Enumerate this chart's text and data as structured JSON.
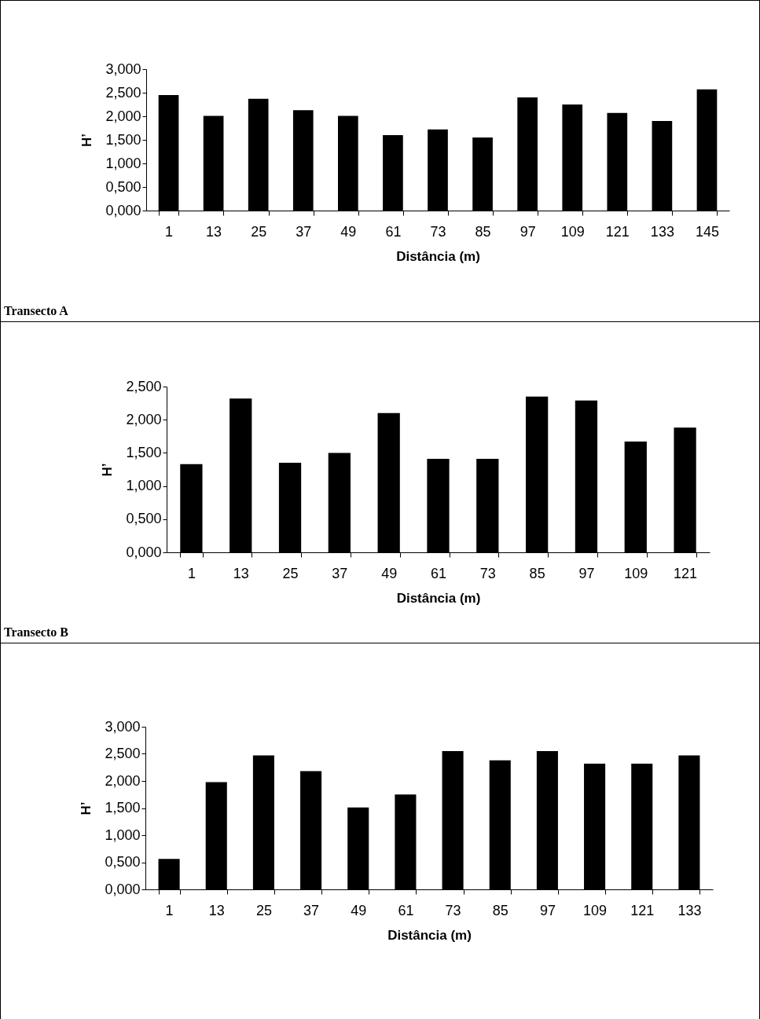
{
  "chart_data": [
    {
      "type": "bar",
      "xlabel": "Distância (m)",
      "ylabel": "H’",
      "categories": [
        "1",
        "13",
        "25",
        "37",
        "49",
        "61",
        "73",
        "85",
        "97",
        "109",
        "121",
        "133",
        "145"
      ],
      "values": [
        2.45,
        2.01,
        2.37,
        2.13,
        2.01,
        1.6,
        1.72,
        1.55,
        2.4,
        2.25,
        2.07,
        1.9,
        2.57
      ],
      "color": "#000000",
      "ylim": [
        0,
        3
      ],
      "yticks": [
        {
          "value": 0,
          "label": "0,000"
        },
        {
          "value": 0.5,
          "label": "0,500"
        },
        {
          "value": 1,
          "label": "1,000"
        },
        {
          "value": 1.5,
          "label": "1,500"
        },
        {
          "value": 2,
          "label": "2,000"
        },
        {
          "value": 2.5,
          "label": "2,500"
        },
        {
          "value": 3,
          "label": "3,000"
        }
      ],
      "grid": false,
      "annotations": [
        "Transecto A"
      ]
    },
    {
      "type": "bar",
      "xlabel": "Distância (m)",
      "ylabel": "H’",
      "categories": [
        "1",
        "13",
        "25",
        "37",
        "49",
        "61",
        "73",
        "85",
        "97",
        "109",
        "121"
      ],
      "values": [
        1.33,
        2.32,
        1.35,
        1.5,
        2.1,
        1.41,
        1.41,
        2.35,
        2.29,
        1.67,
        1.88
      ],
      "color": "#000000",
      "ylim": [
        0,
        2.5
      ],
      "yticks": [
        {
          "value": 0,
          "label": "0,000"
        },
        {
          "value": 0.5,
          "label": "0,500"
        },
        {
          "value": 1,
          "label": "1,000"
        },
        {
          "value": 1.5,
          "label": "1,500"
        },
        {
          "value": 2,
          "label": "2,000"
        },
        {
          "value": 2.5,
          "label": "2,500"
        }
      ],
      "grid": false,
      "annotations": [
        "Transecto B"
      ]
    },
    {
      "type": "bar",
      "xlabel": "Distância (m)",
      "ylabel": "H’",
      "categories": [
        "1",
        "13",
        "25",
        "37",
        "49",
        "61",
        "73",
        "85",
        "97",
        "109",
        "121",
        "133"
      ],
      "values": [
        0.56,
        1.98,
        2.47,
        2.18,
        1.51,
        1.75,
        2.55,
        2.38,
        2.55,
        2.32,
        2.32,
        2.47
      ],
      "color": "#000000",
      "ylim": [
        0,
        3
      ],
      "yticks": [
        {
          "value": 0,
          "label": "0,000"
        },
        {
          "value": 0.5,
          "label": "0,500"
        },
        {
          "value": 1,
          "label": "1,000"
        },
        {
          "value": 1.5,
          "label": "1,500"
        },
        {
          "value": 2,
          "label": "2,000"
        },
        {
          "value": 2.5,
          "label": "2,500"
        },
        {
          "value": 3,
          "label": "3,000"
        }
      ],
      "grid": false
    }
  ]
}
